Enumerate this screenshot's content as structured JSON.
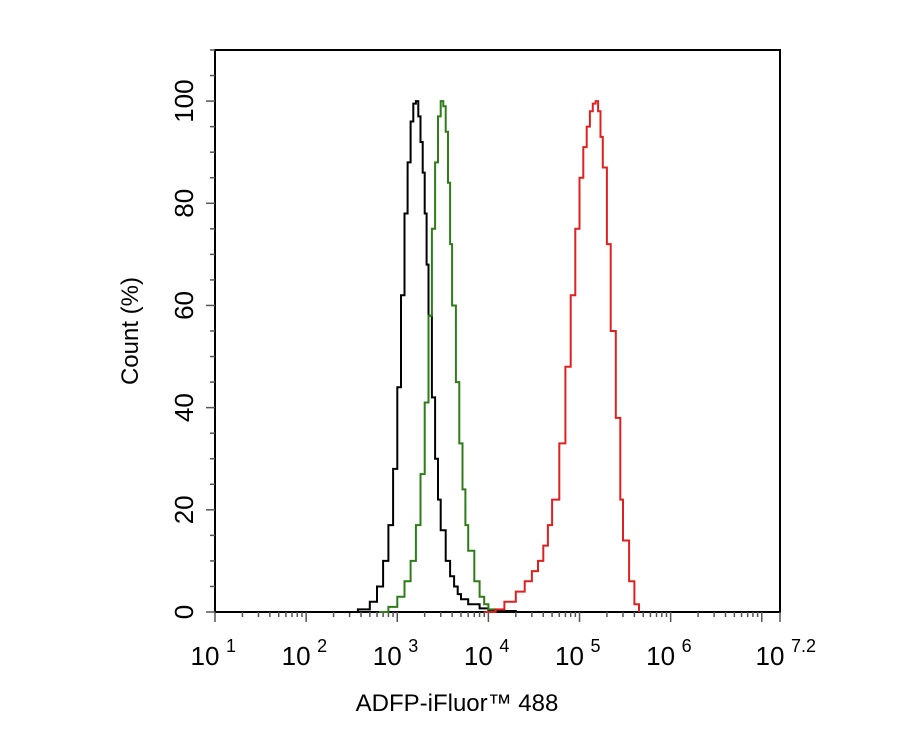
{
  "chart_data": {
    "type": "line",
    "title": "",
    "xlabel": "ADFP-iFluor™ 488",
    "ylabel": "Count  (%)",
    "x_scale": "log",
    "xlim": [
      10,
      15848931.92
    ],
    "ylim": [
      0,
      110
    ],
    "x_ticks": [
      {
        "value": 10,
        "base": "10",
        "exp": "1"
      },
      {
        "value": 100,
        "base": "10",
        "exp": "2"
      },
      {
        "value": 1000,
        "base": "10",
        "exp": "3"
      },
      {
        "value": 10000,
        "base": "10",
        "exp": "4"
      },
      {
        "value": 100000,
        "base": "10",
        "exp": "5"
      },
      {
        "value": 1000000,
        "base": "10",
        "exp": "6"
      },
      {
        "value": 15848931.92,
        "base": "10",
        "exp": "7.2"
      }
    ],
    "y_ticks": [
      "0",
      "20",
      "40",
      "60",
      "80",
      "100"
    ],
    "grid": false,
    "legend": "none",
    "series": [
      {
        "color": "#000000",
        "x": [
          270,
          370,
          500,
          600,
          700,
          800,
          900,
          1000,
          1100,
          1200,
          1300,
          1400,
          1500,
          1600,
          1700,
          1800,
          1900,
          2000,
          2100,
          2200,
          2400,
          2600,
          2800,
          3000,
          3400,
          3800,
          4200,
          4600,
          5000,
          6000,
          8000,
          10000,
          14000,
          20000
        ],
        "y": [
          0,
          0.5,
          2,
          5,
          10,
          17,
          28,
          44,
          62,
          78,
          88,
          96,
          99.5,
          100,
          97,
          92,
          86,
          78,
          68,
          58,
          42,
          30,
          22,
          16,
          10,
          7,
          5,
          3.5,
          2.5,
          1.5,
          0.7,
          0.4,
          0.2,
          0
        ]
      },
      {
        "color": "#2e7d18",
        "x": [
          630,
          800,
          1000,
          1200,
          1400,
          1600,
          1800,
          2000,
          2200,
          2400,
          2600,
          2800,
          3000,
          3200,
          3400,
          3600,
          3800,
          4000,
          4400,
          4800,
          5200,
          5600,
          6000,
          7000,
          8000,
          9000,
          10000,
          12000
        ],
        "y": [
          0,
          1,
          3,
          6,
          10,
          17,
          27,
          41,
          58,
          75,
          88,
          97,
          100,
          99,
          94,
          84,
          72,
          60,
          45,
          33,
          24,
          17,
          12,
          6,
          3,
          1.5,
          0.5,
          0
        ]
      },
      {
        "color": "#e02020",
        "x": [
          9000,
          12000,
          15000,
          20000,
          25000,
          30000,
          35000,
          40000,
          45000,
          50000,
          60000,
          70000,
          80000,
          90000,
          100000,
          110000,
          120000,
          130000,
          140000,
          150000,
          160000,
          170000,
          180000,
          200000,
          220000,
          250000,
          280000,
          300000,
          350000,
          400000,
          450000
        ],
        "y": [
          0,
          0.5,
          2,
          4,
          6,
          8,
          10,
          13,
          17,
          22,
          33,
          48,
          62,
          75,
          85,
          91,
          95,
          98,
          99.5,
          100,
          98,
          93,
          87,
          72,
          55,
          38,
          22,
          14,
          6,
          1.5,
          0
        ]
      }
    ]
  }
}
